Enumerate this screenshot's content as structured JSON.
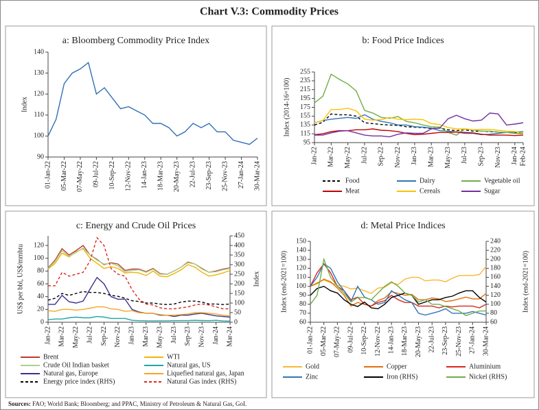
{
  "title": "Chart V.3: Commodity Prices",
  "source_label": "Sources:",
  "source_text": "FAO; World Bank; Bloomberg; and PPAC, Ministry of Petroleum & Natural Gas, GoI.",
  "chart_data": [
    {
      "type": "line",
      "title": "a: Bloomberg Commodity Price Index",
      "ylabel": "Index",
      "x": [
        "01-Jan-22",
        null,
        "05-Mar-22",
        null,
        "07-May-22",
        null,
        "09-Jul-22",
        null,
        "10-Sep-22",
        null,
        "12-Nov-22",
        null,
        "14-Jan-23",
        null,
        "18-Mar-23",
        null,
        "20-May-23",
        null,
        "22-Jul-23",
        null,
        "23-Sep-23",
        null,
        "25-Nov-23",
        null,
        "27-Jan-24",
        null,
        "30-Mar-24"
      ],
      "ylim": [
        90,
        140
      ],
      "yticks": [
        90,
        100,
        110,
        120,
        130,
        140
      ],
      "grid": false,
      "series": [
        {
          "name": "Bloomberg Commodity Price Index",
          "color": "#2e6fb8",
          "line_style": "solid",
          "values": [
            100,
            108,
            125,
            130,
            132,
            135,
            120,
            123,
            118,
            113,
            114,
            112,
            110,
            106,
            106,
            104,
            100,
            102,
            106,
            104,
            106,
            102,
            102,
            98,
            97,
            96,
            99
          ]
        }
      ]
    },
    {
      "type": "line",
      "title": "b: Food Price Indices",
      "ylabel": "Index (2014-16=100)",
      "x": [
        "Jan-22",
        null,
        "Mar-22",
        null,
        "May-22",
        null,
        "Jul-22",
        null,
        "Sep-22",
        null,
        "Nov-22",
        null,
        "Jan-23",
        null,
        "Mar-23",
        null,
        "May-23",
        null,
        "Jul-23",
        null,
        "Sep-23",
        null,
        "Nov-23",
        null,
        "Jan-24",
        "Feb-24"
      ],
      "ylim": [
        95,
        255
      ],
      "yticks": [
        95,
        115,
        135,
        155,
        175,
        195,
        215,
        235,
        255
      ],
      "grid": false,
      "legend": "bottom",
      "series": [
        {
          "name": "Food",
          "color": "#000000",
          "line_style": "dashed",
          "values": [
            135,
            141,
            160,
            158,
            158,
            155,
            140,
            138,
            136,
            135,
            134,
            131,
            130,
            129,
            127,
            128,
            124,
            122,
            124,
            121,
            121,
            120,
            119,
            118,
            118,
            117
          ]
        },
        {
          "name": "Dairy",
          "color": "#2e75b6",
          "line_style": "solid",
          "values": [
            140,
            145,
            148,
            150,
            152,
            150,
            158,
            148,
            143,
            140,
            135,
            135,
            131,
            130,
            128,
            122,
            121,
            119,
            116,
            116,
            113,
            114,
            116,
            118,
            119,
            120
          ]
        },
        {
          "name": "Vegetable oil",
          "color": "#70ad47",
          "line_style": "solid",
          "values": [
            185,
            200,
            250,
            238,
            228,
            212,
            168,
            162,
            152,
            150,
            154,
            143,
            140,
            135,
            131,
            130,
            118,
            112,
            126,
            124,
            121,
            121,
            119,
            118,
            116,
            115
          ]
        },
        {
          "name": "Meat",
          "color": "#c00000",
          "line_style": "solid",
          "values": [
            113,
            115,
            120,
            122,
            122,
            124,
            124,
            126,
            123,
            122,
            120,
            116,
            113,
            114,
            116,
            118,
            118,
            119,
            118,
            117,
            114,
            112,
            112,
            112,
            111,
            112
          ]
        },
        {
          "name": "Cereals",
          "color": "#ffc000",
          "line_style": "solid",
          "values": [
            140,
            145,
            170,
            170,
            173,
            167,
            148,
            146,
            147,
            152,
            148,
            147,
            148,
            147,
            138,
            136,
            129,
            126,
            126,
            124,
            125,
            125,
            123,
            121,
            120,
            117
          ]
        },
        {
          "name": "Sugar",
          "color": "#7030a0",
          "line_style": "solid",
          "values": [
            112,
            112,
            117,
            121,
            122,
            117,
            112,
            110,
            110,
            108,
            114,
            117,
            116,
            116,
            126,
            128,
            149,
            157,
            149,
            144,
            146,
            162,
            160,
            135,
            137,
            140
          ]
        }
      ]
    },
    {
      "type": "line",
      "title": "c: Energy and Crude Oil Prices",
      "ylabel": "US$ per bbl, US$/mmbtu",
      "y2label": "Index",
      "x": [
        "Jan-22",
        null,
        "Mar-22",
        null,
        "May-22",
        null,
        "Jul-22",
        null,
        "Sep-22",
        null,
        "Nov-22",
        null,
        "Jan-23",
        null,
        "Mar-23",
        null,
        "May-23",
        null,
        "Jul-23",
        null,
        "Sep-23",
        null,
        "Nov-23",
        null,
        "Jan-24",
        null,
        "Mar-24"
      ],
      "ylim": [
        0,
        135
      ],
      "yticks": [
        0,
        20,
        40,
        60,
        80,
        100,
        120
      ],
      "y2lim": [
        0,
        450
      ],
      "y2ticks": [
        0,
        50,
        100,
        150,
        200,
        250,
        300,
        350,
        400,
        450
      ],
      "grid": false,
      "legend": "bottom",
      "series": [
        {
          "name": "Brent",
          "color": "#c0392b",
          "line_style": "solid",
          "values": [
            85,
            97,
            115,
            105,
            112,
            120,
            105,
            98,
            90,
            93,
            91,
            81,
            83,
            83,
            79,
            84,
            76,
            75,
            80,
            86,
            94,
            91,
            84,
            78,
            80,
            83,
            85
          ]
        },
        {
          "name": "WTI",
          "color": "#f0b400",
          "line_style": "solid",
          "values": [
            83,
            92,
            108,
            102,
            110,
            115,
            100,
            92,
            84,
            87,
            84,
            77,
            78,
            77,
            73,
            80,
            72,
            71,
            76,
            82,
            90,
            86,
            78,
            72,
            74,
            77,
            81
          ]
        },
        {
          "name": "Crude Oil Indian basket",
          "color": "#a9d18e",
          "line_style": "solid",
          "values": [
            84,
            95,
            112,
            103,
            109,
            116,
            105,
            97,
            91,
            92,
            88,
            79,
            81,
            82,
            78,
            83,
            75,
            75,
            80,
            86,
            93,
            91,
            83,
            78,
            79,
            82,
            84
          ]
        },
        {
          "name": "Natural gas, US",
          "color": "#1fa5a0",
          "line_style": "solid",
          "values": [
            4,
            5,
            5,
            7,
            8,
            7,
            7,
            9,
            8,
            6,
            6,
            6,
            3,
            2.5,
            2.3,
            2,
            2.2,
            2.3,
            2.5,
            2.6,
            2.6,
            3,
            2.7,
            2.5,
            3,
            2,
            1.8
          ]
        },
        {
          "name": "Natural gas, Europe",
          "color": "#3b2f8f",
          "line_style": "solid",
          "values": [
            28,
            28,
            42,
            32,
            30,
            33,
            52,
            70,
            60,
            40,
            36,
            36,
            20,
            16,
            14,
            14,
            11,
            11,
            9,
            11,
            11,
            13,
            14,
            12,
            10,
            9,
            8
          ]
        },
        {
          "name": "Liquefied natural gas, Japan",
          "color": "#f5a623",
          "line_style": "solid",
          "values": [
            18,
            17,
            20,
            20,
            19,
            20,
            22,
            24,
            24,
            21,
            20,
            17,
            18,
            15,
            14,
            14,
            12,
            11,
            11,
            12,
            13,
            15,
            15,
            14,
            13,
            11,
            10
          ]
        },
        {
          "name": "Energy price index (RHS)",
          "color": "#000000",
          "line_style": "dashed",
          "axis": "y2",
          "values": [
            115,
            125,
            150,
            140,
            150,
            160,
            155,
            155,
            150,
            140,
            135,
            125,
            112,
            108,
            100,
            100,
            95,
            92,
            95,
            105,
            110,
            110,
            105,
            95,
            95,
            92,
            95
          ]
        },
        {
          "name": "Natural Gas index (RHS)",
          "color": "#d9261c",
          "line_style": "dashed",
          "axis": "y2",
          "values": [
            190,
            190,
            260,
            240,
            250,
            260,
            320,
            440,
            400,
            280,
            250,
            240,
            170,
            120,
            95,
            90,
            75,
            70,
            70,
            75,
            80,
            90,
            95,
            90,
            80,
            70,
            70
          ]
        }
      ]
    },
    {
      "type": "line",
      "title": "d:  Metal Price Indices",
      "ylabel": "Index (end-2021=100)",
      "y2label": "Index (end-2021=100)",
      "x": [
        "01-Jan-22",
        null,
        "05-Mar-22",
        null,
        "07-May-22",
        null,
        "09-Jul-22",
        null,
        "10-Sep-22",
        null,
        "12-Nov-22",
        null,
        "14-Jan-23",
        null,
        "18-Mar-23",
        null,
        "20-May-23",
        null,
        "22-Jul-23",
        null,
        "23-Sep-23",
        null,
        "25-Nov-23",
        null,
        "27-Jan-24",
        null,
        "30-Mar-24"
      ],
      "ylim": [
        60,
        150
      ],
      "yticks": [
        60,
        70,
        80,
        90,
        100,
        110,
        120,
        130,
        140,
        150
      ],
      "y2lim": [
        60,
        240
      ],
      "y2ticks": [
        60,
        80,
        100,
        120,
        140,
        160,
        180,
        200,
        220,
        240
      ],
      "grid": false,
      "legend": "bottom",
      "series": [
        {
          "name": "Gold",
          "color": "#f7b731",
          "line_style": "solid",
          "values": [
            100,
            104,
            107,
            104,
            101,
            100,
            97,
            98,
            95,
            92,
            98,
            99,
            104,
            102,
            108,
            110,
            110,
            106,
            107,
            107,
            105,
            109,
            112,
            112,
            112,
            113,
            122
          ]
        },
        {
          "name": "Copper",
          "color": "#e46c0a",
          "line_style": "solid",
          "values": [
            100,
            103,
            108,
            105,
            98,
            90,
            78,
            82,
            80,
            78,
            84,
            87,
            94,
            92,
            90,
            91,
            85,
            85,
            87,
            86,
            83,
            84,
            86,
            88,
            86,
            86,
            92
          ]
        },
        {
          "name": "Aluminium",
          "color": "#d9261c",
          "line_style": "solid",
          "values": [
            100,
            115,
            125,
            115,
            100,
            95,
            85,
            88,
            80,
            78,
            82,
            84,
            90,
            85,
            82,
            82,
            78,
            78,
            78,
            76,
            78,
            77,
            78,
            78,
            78,
            76,
            80
          ]
        },
        {
          "name": "Zinc",
          "color": "#2e75b6",
          "line_style": "solid",
          "values": [
            100,
            110,
            125,
            120,
            105,
            95,
            83,
            100,
            88,
            85,
            80,
            82,
            95,
            90,
            85,
            82,
            70,
            68,
            70,
            72,
            75,
            70,
            70,
            70,
            72,
            70,
            68
          ]
        },
        {
          "name": "Iron (RHS)",
          "color": "#000000",
          "line_style": "solid",
          "axis": "y2",
          "values": [
            120,
            135,
            140,
            130,
            125,
            110,
            100,
            95,
            105,
            92,
            90,
            100,
            115,
            120,
            125,
            120,
            100,
            105,
            110,
            110,
            115,
            118,
            125,
            130,
            130,
            115,
            105
          ]
        },
        {
          "name": "Nickel (RHS)",
          "color": "#70ad47",
          "line_style": "solid",
          "axis": "y2",
          "values": [
            100,
            120,
            200,
            160,
            140,
            125,
            105,
            115,
            115,
            110,
            125,
            140,
            150,
            140,
            125,
            120,
            105,
            110,
            100,
            100,
            95,
            90,
            85,
            75,
            80,
            85,
            85
          ]
        }
      ]
    }
  ]
}
